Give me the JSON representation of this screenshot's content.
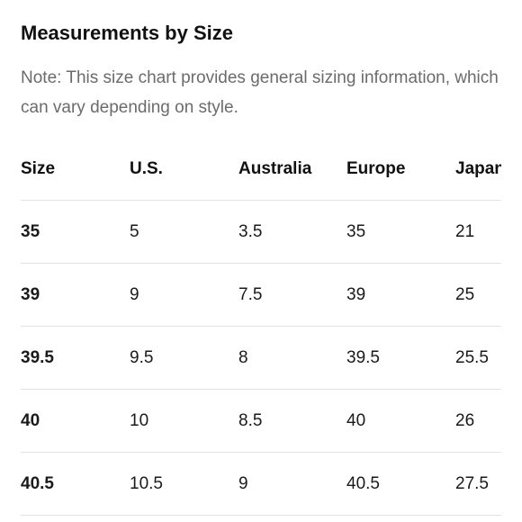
{
  "title": "Measurements by Size",
  "note": "Note: This size chart provides general sizing information, which can vary depending on style.",
  "table": {
    "headers": [
      "Size",
      "U.S.",
      "Australia",
      "Europe",
      "Japan"
    ],
    "rows": [
      [
        "35",
        "5",
        "3.5",
        "35",
        "21"
      ],
      [
        "39",
        "9",
        "7.5",
        "39",
        "25"
      ],
      [
        "39.5",
        "9.5",
        "8",
        "39.5",
        "25.5"
      ],
      [
        "40",
        "10",
        "8.5",
        "40",
        "26"
      ],
      [
        "40.5",
        "10.5",
        "9",
        "40.5",
        "27.5"
      ]
    ]
  }
}
